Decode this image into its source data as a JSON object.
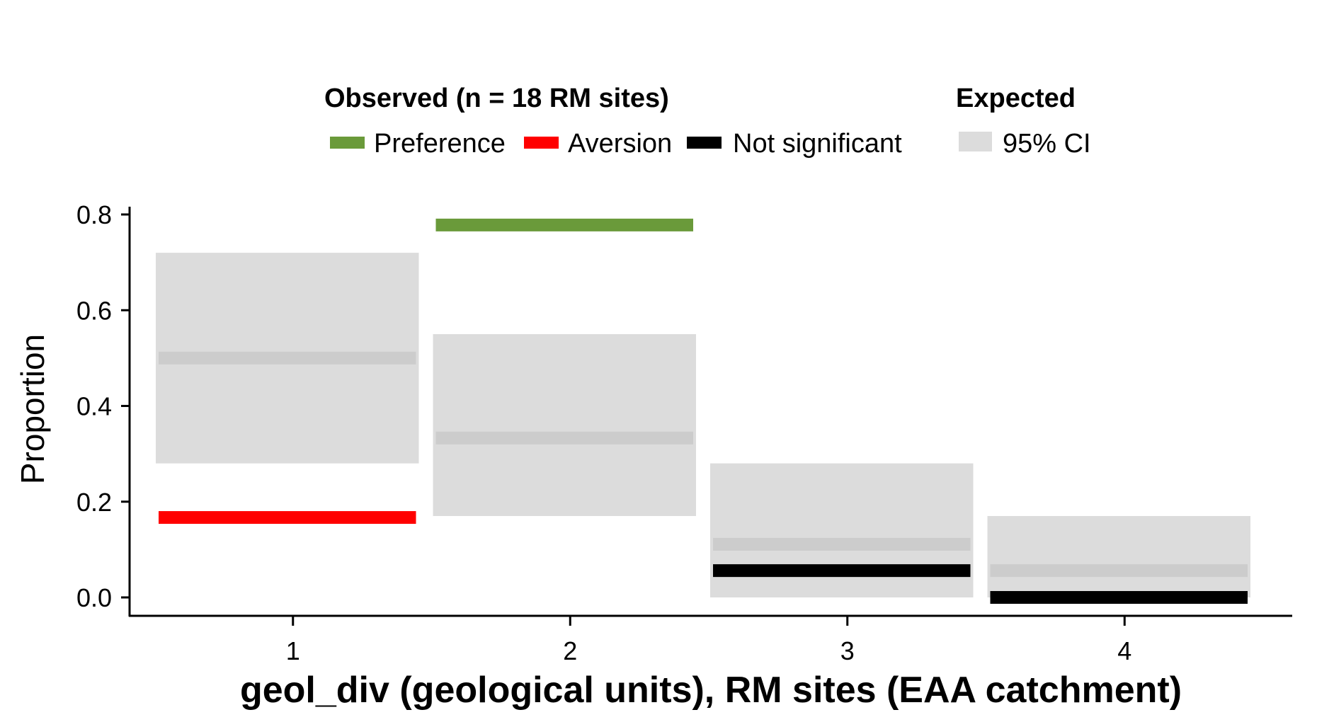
{
  "chart_data": {
    "type": "bar",
    "xlabel": "geol_div (geological units), RM sites (EAA catchment)",
    "ylabel": "Proportion",
    "categories": [
      "1",
      "2",
      "3",
      "4"
    ],
    "ylim": [
      -0.02,
      0.81
    ],
    "y_ticks": [
      "0.0",
      "0.2",
      "0.4",
      "0.6",
      "0.8"
    ],
    "y_tick_values": [
      0,
      0.2,
      0.4,
      0.6,
      0.8
    ],
    "expected": {
      "legend_title": "Expected",
      "legend_label": "95% CI",
      "values": [
        0.5,
        0.333,
        0.111,
        0.056
      ],
      "ci_lower": [
        0.28,
        0.17,
        0.0,
        0.0
      ],
      "ci_upper": [
        0.72,
        0.55,
        0.28,
        0.17
      ],
      "band_color": "#dcdcdc",
      "line_color": "#cccccc"
    },
    "observed": {
      "legend_title": "Observed (n = 18 RM sites)",
      "values": [
        0.167,
        0.778,
        0.056,
        0.0
      ],
      "status": [
        "Aversion",
        "Preference",
        "Not significant",
        "Not significant"
      ]
    },
    "series": [
      {
        "name": "Preference",
        "color": "#6a9a3a"
      },
      {
        "name": "Aversion",
        "color": "#ff0000"
      },
      {
        "name": "Not significant",
        "color": "#000000"
      }
    ],
    "grid": false,
    "legend_position": "top"
  }
}
